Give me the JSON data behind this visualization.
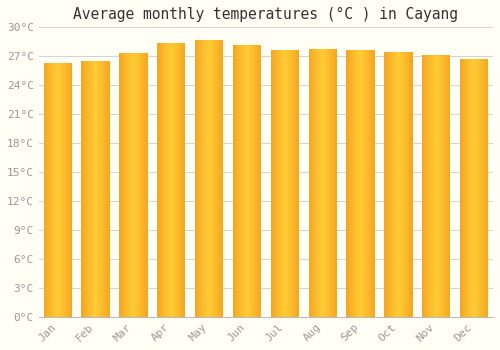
{
  "title": "Average monthly temperatures (°C ) in Cayang",
  "months": [
    "Jan",
    "Feb",
    "Mar",
    "Apr",
    "May",
    "Jun",
    "Jul",
    "Aug",
    "Sep",
    "Oct",
    "Nov",
    "Dec"
  ],
  "values": [
    26.3,
    26.5,
    27.3,
    28.4,
    28.7,
    28.2,
    27.6,
    27.8,
    27.6,
    27.4,
    27.1,
    26.7
  ],
  "bar_color_edge": "#F5A623",
  "bar_color_center": "#FFCD34",
  "background_color": "#FFFFF5",
  "grid_color": "#cccccc",
  "text_color": "#999999",
  "ylim": [
    0,
    30
  ],
  "yticks": [
    0,
    3,
    6,
    9,
    12,
    15,
    18,
    21,
    24,
    27,
    30
  ],
  "title_fontsize": 10.5,
  "tick_fontsize": 8,
  "bar_width": 0.75,
  "n_gradient_steps": 50
}
